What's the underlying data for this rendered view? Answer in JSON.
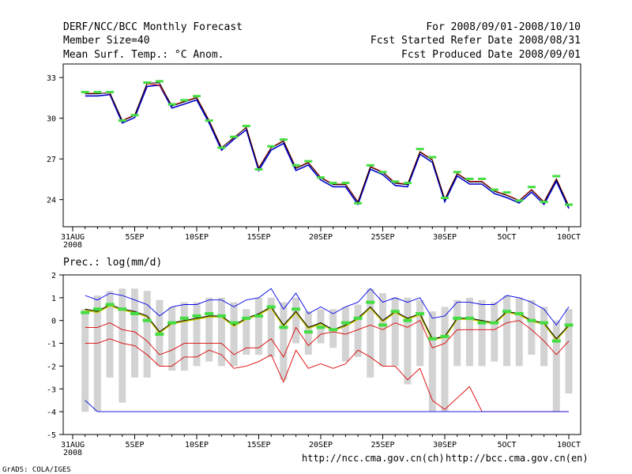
{
  "header": {
    "title": "DERF/NCC/BCC Monthly Forecast",
    "member_size": "Member Size=40",
    "variable": "Mean Surf. Temp.: °C Anom.",
    "period": "For 2008/09/01-2008/10/10",
    "started": "Fcst Started Refer Date 2008/08/31",
    "produced": "Fcst Produced Date 2008/09/01"
  },
  "footer": {
    "credit": "GrADS: COLA/IGES",
    "url_ch": "http://ncc.cma.gov.cn(ch)",
    "url_en": "http://bcc.cma.gov.cn(en)"
  },
  "colors": {
    "ensemble": "#0000cc",
    "red": "#dd0000",
    "black": "#000000",
    "marker": "#44dd44",
    "box": "#d3d3d3",
    "blue_line": "#0000ee"
  },
  "chart_data": [
    {
      "type": "line",
      "title": "Mean Surf. Temp.: °C Anom.",
      "x_labels": [
        "31AUG",
        "5SEP",
        "10SEP",
        "15SEP",
        "20SEP",
        "25SEP",
        "30SEP",
        "5OCT",
        "10OCT"
      ],
      "x_sublabel": "2008",
      "x_label_days": [
        0,
        5,
        10,
        15,
        20,
        25,
        30,
        35,
        40
      ],
      "xlim": [
        0,
        40
      ],
      "ylim": [
        22,
        34
      ],
      "y_ticks": [
        24,
        27,
        30,
        33
      ],
      "days": [
        1,
        2,
        3,
        4,
        5,
        6,
        7,
        8,
        9,
        10,
        11,
        12,
        13,
        14,
        15,
        16,
        17,
        18,
        19,
        20,
        21,
        22,
        23,
        24,
        25,
        26,
        27,
        28,
        29,
        30,
        31,
        32,
        33,
        34,
        35,
        36,
        37,
        38,
        39,
        40
      ],
      "series": [
        {
          "name": "ensemble-blue",
          "values": [
            31.7,
            31.7,
            31.8,
            29.7,
            30.1,
            32.4,
            32.5,
            30.8,
            31.1,
            31.4,
            29.7,
            27.7,
            28.5,
            29.2,
            26.2,
            27.7,
            28.2,
            26.2,
            26.6,
            25.5,
            25.0,
            25.0,
            23.7,
            26.3,
            25.9,
            25.1,
            25.0,
            27.4,
            26.8,
            23.9,
            25.8,
            25.2,
            25.2,
            24.5,
            24.2,
            23.8,
            24.6,
            23.7,
            25.4,
            23.4
          ]
        },
        {
          "name": "red",
          "values": [
            31.8,
            31.8,
            31.8,
            29.8,
            30.2,
            32.5,
            32.4,
            30.9,
            31.2,
            31.5,
            29.8,
            27.8,
            28.5,
            29.3,
            26.3,
            27.8,
            28.3,
            26.3,
            26.7,
            25.6,
            25.1,
            25.1,
            23.8,
            26.4,
            26.0,
            25.2,
            25.1,
            27.5,
            26.9,
            24.0,
            25.9,
            25.3,
            25.3,
            24.6,
            24.3,
            23.9,
            24.7,
            23.8,
            25.5,
            23.5
          ]
        },
        {
          "name": "black",
          "values": [
            31.8,
            31.8,
            31.9,
            29.8,
            30.2,
            32.6,
            32.6,
            30.9,
            31.2,
            31.5,
            29.8,
            27.8,
            28.6,
            29.3,
            26.3,
            27.8,
            28.3,
            26.3,
            26.7,
            25.6,
            25.1,
            25.1,
            23.8,
            26.4,
            26.0,
            25.2,
            25.1,
            27.5,
            26.9,
            24.0,
            25.9,
            25.3,
            25.3,
            24.6,
            24.3,
            23.9,
            24.7,
            23.8,
            25.5,
            23.5
          ]
        },
        {
          "name": "marker",
          "values": [
            31.9,
            31.9,
            31.9,
            29.8,
            30.2,
            32.6,
            32.7,
            31.0,
            31.3,
            31.6,
            29.8,
            27.8,
            28.6,
            29.4,
            26.2,
            27.9,
            28.4,
            26.5,
            26.8,
            25.6,
            25.2,
            25.2,
            23.7,
            26.5,
            26.0,
            25.3,
            25.2,
            27.7,
            27.1,
            24.1,
            26.0,
            25.5,
            25.5,
            24.7,
            24.5,
            23.9,
            24.9,
            23.8,
            25.7,
            23.6
          ]
        }
      ]
    },
    {
      "type": "box",
      "title": "Prec.: log(mm/d)",
      "x_labels": [
        "31AUG",
        "5SEP",
        "10SEP",
        "15SEP",
        "20SEP",
        "25SEP",
        "30SEP",
        "5OCT",
        "10OCT"
      ],
      "x_sublabel": "2008",
      "x_label_days": [
        0,
        5,
        10,
        15,
        20,
        25,
        30,
        35,
        40
      ],
      "xlim": [
        0,
        40
      ],
      "ylim": [
        -5,
        2
      ],
      "y_ticks": [
        -5,
        -4,
        -3,
        -2,
        -1,
        0,
        1,
        2
      ],
      "days": [
        1,
        2,
        3,
        4,
        5,
        6,
        7,
        8,
        9,
        10,
        11,
        12,
        13,
        14,
        15,
        16,
        17,
        18,
        19,
        20,
        21,
        22,
        23,
        24,
        25,
        26,
        27,
        28,
        29,
        30,
        31,
        32,
        33,
        34,
        35,
        36,
        37,
        38,
        39,
        40
      ],
      "box_low": [
        -4.0,
        -4.0,
        -2.5,
        -3.6,
        -2.5,
        -2.5,
        -2.0,
        -2.2,
        -2.2,
        -2.0,
        -1.8,
        -2.0,
        -2.0,
        -1.5,
        -1.5,
        -1.6,
        -2.6,
        -1.0,
        -1.5,
        -1.0,
        -1.2,
        -1.8,
        -1.6,
        -2.5,
        -2.0,
        -2.0,
        -2.8,
        -2.0,
        -4.0,
        -4.0,
        -2.0,
        -2.0,
        -2.0,
        -1.8,
        -2.0,
        -2.0,
        -1.5,
        -2.0,
        -4.0,
        -3.2
      ],
      "box_high": [
        0.5,
        1.1,
        1.3,
        1.4,
        1.4,
        1.3,
        0.9,
        0.6,
        0.8,
        0.8,
        1.0,
        1.0,
        0.8,
        0.5,
        1.0,
        1.0,
        0.8,
        1.0,
        0.4,
        0.5,
        0.5,
        0.6,
        0.7,
        1.4,
        1.2,
        1.0,
        1.0,
        0.9,
        0.4,
        0.6,
        0.9,
        1.0,
        0.9,
        0.8,
        1.1,
        1.0,
        0.9,
        0.6,
        0.0,
        0.5
      ],
      "series": [
        {
          "name": "ensemble-mean",
          "values": [
            0.5,
            0.4,
            0.7,
            0.5,
            0.4,
            0.2,
            -0.5,
            -0.1,
            0.0,
            0.1,
            0.2,
            0.2,
            -0.2,
            0.1,
            0.3,
            0.6,
            -0.2,
            0.4,
            -0.3,
            -0.1,
            -0.4,
            -0.2,
            0.1,
            0.6,
            0.0,
            0.4,
            0.1,
            0.3,
            -0.8,
            -0.7,
            0.1,
            0.1,
            0.0,
            -0.1,
            0.4,
            0.3,
            0.0,
            -0.1,
            -0.8,
            -0.2
          ]
        },
        {
          "name": "upper-blue",
          "values": [
            1.1,
            0.9,
            1.2,
            1.1,
            0.9,
            0.7,
            0.2,
            0.6,
            0.7,
            0.7,
            0.9,
            0.9,
            0.6,
            0.9,
            1.0,
            1.4,
            0.5,
            1.2,
            0.3,
            0.6,
            0.3,
            0.6,
            0.8,
            1.4,
            0.8,
            1.0,
            0.8,
            1.0,
            0.1,
            0.2,
            0.8,
            0.8,
            0.7,
            0.7,
            1.1,
            1.0,
            0.8,
            0.5,
            -0.2,
            0.6
          ]
        },
        {
          "name": "lower-red",
          "values": [
            -0.3,
            -0.3,
            -0.1,
            -0.4,
            -0.5,
            -0.9,
            -1.5,
            -1.3,
            -1.0,
            -1.0,
            -1.0,
            -1.0,
            -1.5,
            -1.2,
            -1.2,
            -0.8,
            -1.6,
            -0.3,
            -1.1,
            -0.6,
            -0.5,
            -0.6,
            -0.4,
            -0.2,
            -0.4,
            -0.1,
            -0.3,
            0.0,
            -1.2,
            -1.0,
            -0.4,
            -0.4,
            -0.4,
            -0.4,
            -0.1,
            0.0,
            -0.4,
            -0.9,
            -1.5,
            -0.9
          ]
        },
        {
          "name": "lowest-red",
          "values": [
            -1.0,
            -1.0,
            -0.8,
            -1.0,
            -1.1,
            -1.5,
            -2.0,
            -2.0,
            -1.6,
            -1.6,
            -1.3,
            -1.5,
            -2.1,
            -2.0,
            -1.8,
            -1.5,
            -2.7,
            -1.3,
            -2.1,
            -1.9,
            -2.1,
            -1.9,
            -1.3,
            -1.6,
            -2.0,
            -2.0,
            -2.6,
            -2.1,
            -3.5,
            -3.9,
            -3.4,
            -2.9,
            -4.0,
            -4.0,
            -4.0,
            -4.0,
            -4.0,
            -4.0,
            -4.0,
            -4.0
          ]
        },
        {
          "name": "bottom-blue",
          "values": [
            -3.5,
            -4.0,
            -4.0,
            -4.0,
            -4.0,
            -4.0,
            -4.0,
            -4.0,
            -4.0,
            -4.0,
            -4.0,
            -4.0,
            -4.0,
            -4.0,
            -4.0,
            -4.0,
            -4.0,
            -4.0,
            -4.0,
            -4.0,
            -4.0,
            -4.0,
            -4.0,
            -4.0,
            -4.0,
            -4.0,
            -4.0,
            -4.0,
            -4.0,
            -4.0,
            -4.0,
            -4.0,
            -4.0,
            -4.0,
            -4.0,
            -4.0,
            -4.0,
            -4.0,
            -4.0,
            -4.0
          ]
        },
        {
          "name": "marker",
          "values": [
            0.35,
            0.5,
            0.7,
            0.5,
            0.3,
            0.0,
            -0.6,
            -0.1,
            0.1,
            0.2,
            0.3,
            0.2,
            -0.1,
            0.1,
            0.2,
            0.6,
            -0.3,
            0.5,
            -0.5,
            -0.3,
            -0.4,
            -0.1,
            0.1,
            0.8,
            -0.2,
            0.4,
            0.0,
            0.3,
            -0.8,
            -0.7,
            0.1,
            0.1,
            -0.1,
            -0.1,
            0.4,
            0.3,
            0.0,
            -0.1,
            -0.9,
            -0.2
          ]
        }
      ]
    }
  ]
}
